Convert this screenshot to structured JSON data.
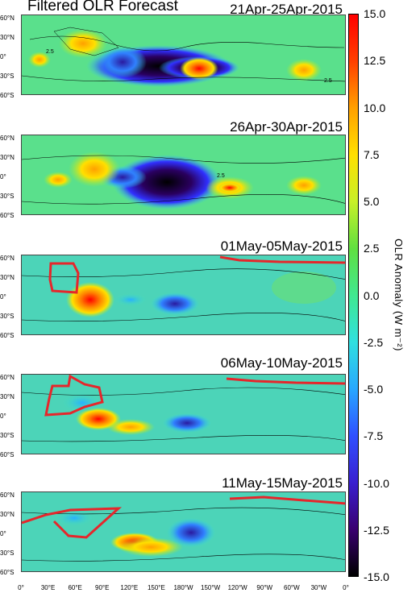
{
  "title": "Filtered OLR  Forecast",
  "colorbar": {
    "label": "OLR Anomaly (W m⁻²)",
    "ticks": [
      "15.0",
      "12.5",
      "10.0",
      "7.5",
      "5.0",
      "2.5",
      "0.0",
      "-2.5",
      "-5.0",
      "-7.5",
      "-10.0",
      "-12.5",
      "-15.0"
    ],
    "range": [
      -15,
      15
    ],
    "colors": [
      "#000000",
      "#3a0070",
      "#3a20d0",
      "#3050ff",
      "#28a8ff",
      "#30e0e0",
      "#40e890",
      "#60e040",
      "#c8f028",
      "#ffe000",
      "#ffa000",
      "#ff4000",
      "#ff0000"
    ]
  },
  "axes": {
    "lat_labels": [
      "60°N",
      "30°N",
      "0°",
      "30°S",
      "60°S"
    ],
    "lon_labels": [
      "0°",
      "30°E",
      "60°E",
      "90°E",
      "120°E",
      "150°E",
      "180°W",
      "150°W",
      "120°W",
      "90°W",
      "60°W",
      "30°W",
      "0°"
    ]
  },
  "highlight_color": "#e6262b",
  "contour_label": "2.5",
  "chart_data": {
    "type": "heatmap",
    "title": "Filtered OLR  Forecast",
    "value_label": "OLR Anomaly (W m⁻²)",
    "value_range": [
      -15,
      15
    ],
    "x_range": [
      0,
      360
    ],
    "y_range": [
      -60,
      60
    ],
    "panels": [
      {
        "date": "21Apr-25Apr-2015",
        "anomalies": [
          {
            "lon": 160,
            "lat": 0,
            "value": -15
          },
          {
            "lon": 125,
            "lat": 0,
            "value": -12
          },
          {
            "lon": 210,
            "lat": -8,
            "value": 14
          },
          {
            "lon": 60,
            "lat": 15,
            "value": 9
          },
          {
            "lon": 315,
            "lat": -5,
            "value": 8
          }
        ]
      },
      {
        "date": "26Apr-30Apr-2015",
        "anomalies": [
          {
            "lon": 160,
            "lat": 0,
            "value": -15
          },
          {
            "lon": 230,
            "lat": -3,
            "value": 11
          },
          {
            "lon": 75,
            "lat": 10,
            "value": 8
          },
          {
            "lon": 320,
            "lat": -5,
            "value": 8
          }
        ]
      },
      {
        "date": "01May-05May-2015",
        "anomalies": [
          {
            "lon": 78,
            "lat": -2,
            "value": 15
          },
          {
            "lon": 168,
            "lat": -3,
            "value": -9
          },
          {
            "lon": 115,
            "lat": 0,
            "value": -5
          }
        ]
      },
      {
        "date": "06May-10May-2015",
        "anomalies": [
          {
            "lon": 90,
            "lat": -2,
            "value": 15
          },
          {
            "lon": 185,
            "lat": -3,
            "value": -10
          },
          {
            "lon": 60,
            "lat": 15,
            "value": -5
          }
        ]
      },
      {
        "date": "11May-15May-2015",
        "anomalies": [
          {
            "lon": 145,
            "lat": -8,
            "value": 13
          },
          {
            "lon": 190,
            "lat": 5,
            "value": -8
          },
          {
            "lon": 60,
            "lat": 20,
            "value": -4
          }
        ]
      }
    ]
  }
}
